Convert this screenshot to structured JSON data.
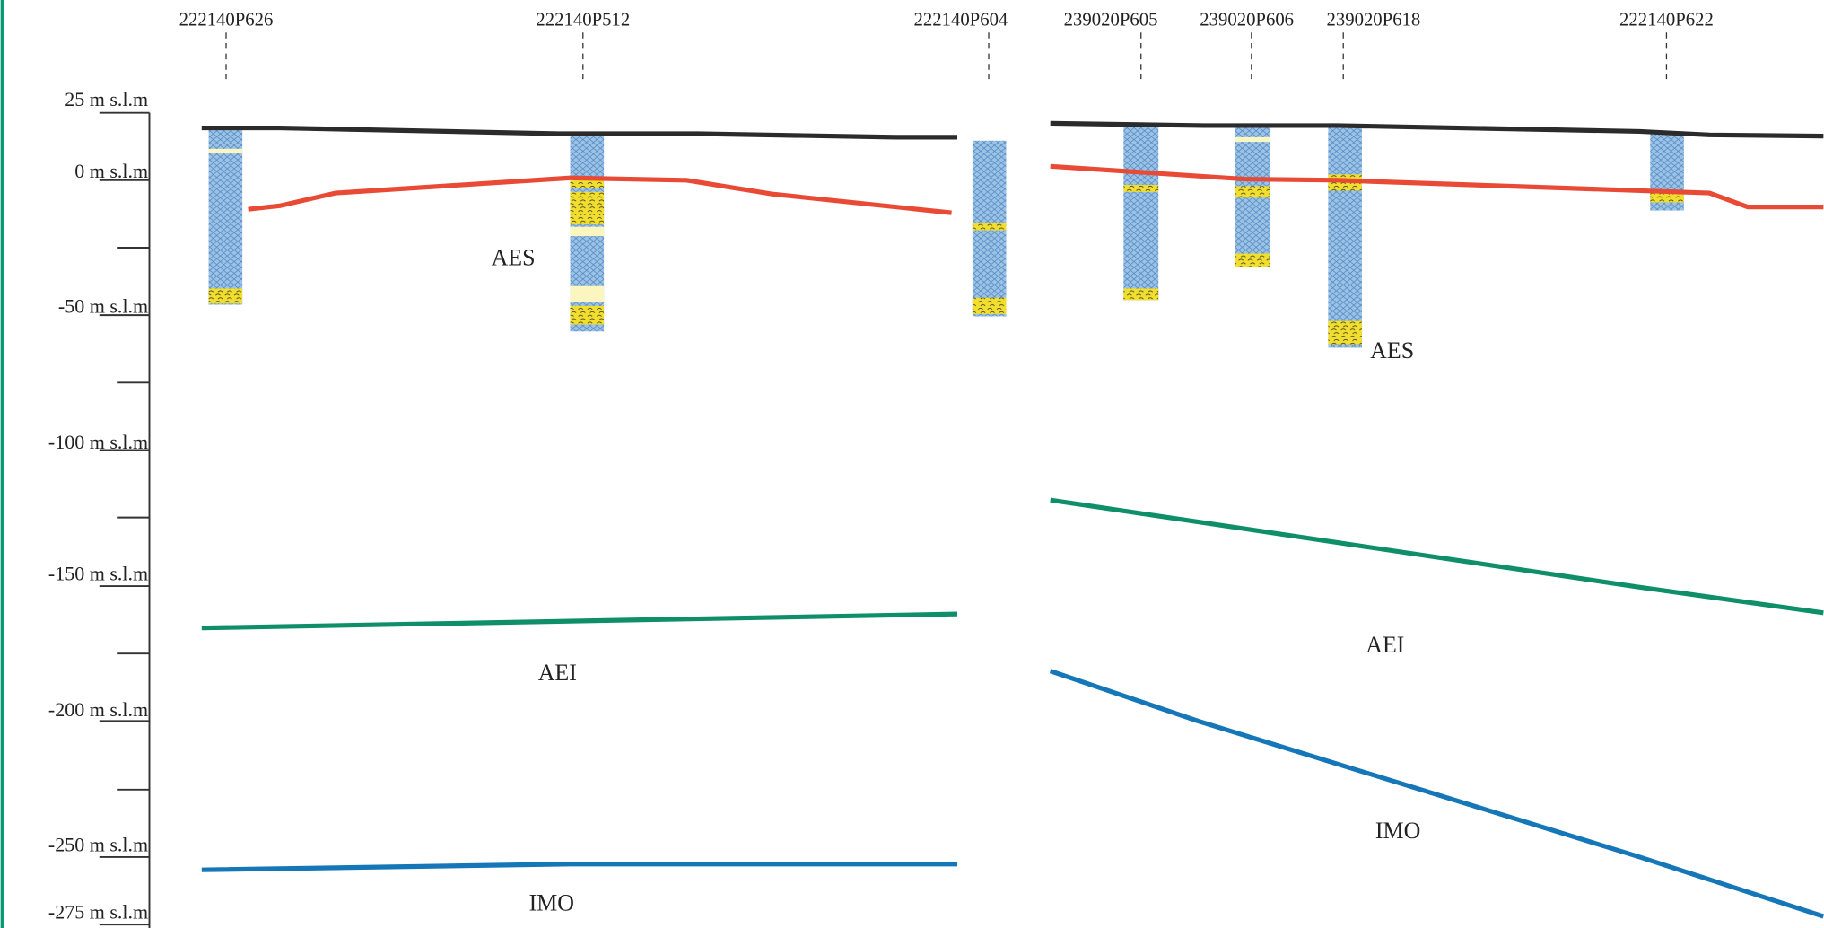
{
  "axis": {
    "labels": [
      "25 m s.l.m",
      "0 m s.l.m",
      "-50 m s.l.m",
      "-100 m s.l.m",
      "-150 m s.l.m",
      "-200 m s.l.m",
      "-250 m s.l.m",
      "-275 m s.l.m"
    ]
  },
  "boreholes": [
    "222140P626",
    "222140P512",
    "222140P604",
    "239020P605",
    "239020P606",
    "239020P618",
    "222140P622"
  ],
  "units": [
    "AES",
    "AEI",
    "IMO",
    "AES",
    "AEI",
    "IMO"
  ]
}
